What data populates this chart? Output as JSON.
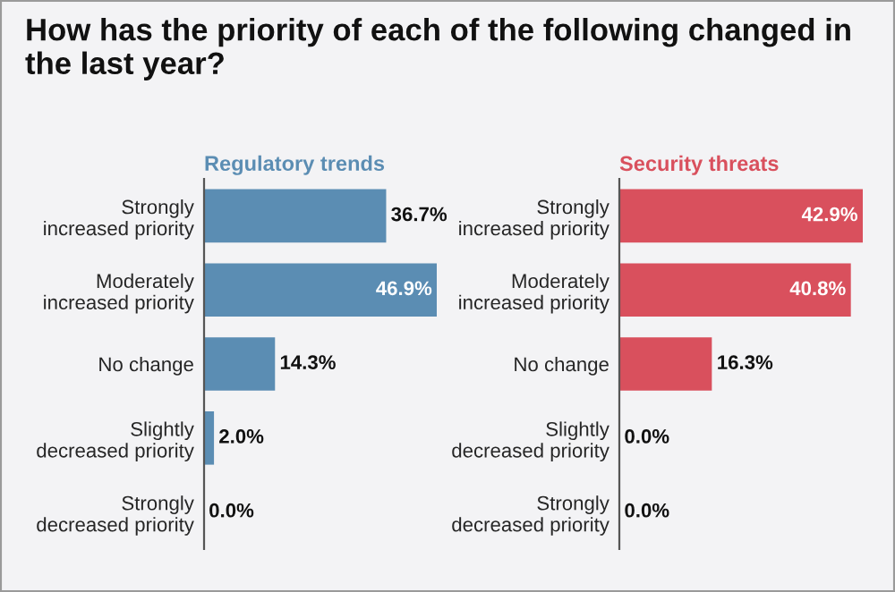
{
  "chart_data": [
    {
      "type": "bar",
      "orientation": "horizontal",
      "title": "How has the priority of each of the following changed in the last year?",
      "subtitle": "Regulatory trends",
      "categories": [
        "Strongly\nincreased priority",
        "Moderately\nincreased priority",
        "No change",
        "Slightly\ndecreased priority",
        "Strongly\ndecreased priority"
      ],
      "values": [
        36.7,
        46.9,
        14.3,
        2.0,
        0.0
      ],
      "value_labels": [
        "36.7%",
        "46.9%",
        "14.3%",
        "2.0%",
        "0.0%"
      ],
      "color": "#5b8db3",
      "grid": false,
      "legend": false
    },
    {
      "type": "bar",
      "orientation": "horizontal",
      "subtitle": "Security threats",
      "categories": [
        "Strongly\nincreased priority",
        "Moderately\nincreased priority",
        "No change",
        "Slightly\ndecreased priority",
        "Strongly\ndecreased priority"
      ],
      "values": [
        42.9,
        40.8,
        16.3,
        0.0,
        0.0
      ],
      "value_labels": [
        "42.9%",
        "40.8%",
        "16.3%",
        "0.0%",
        "0.0%"
      ],
      "color": "#d9505d",
      "grid": false,
      "legend": false
    }
  ]
}
